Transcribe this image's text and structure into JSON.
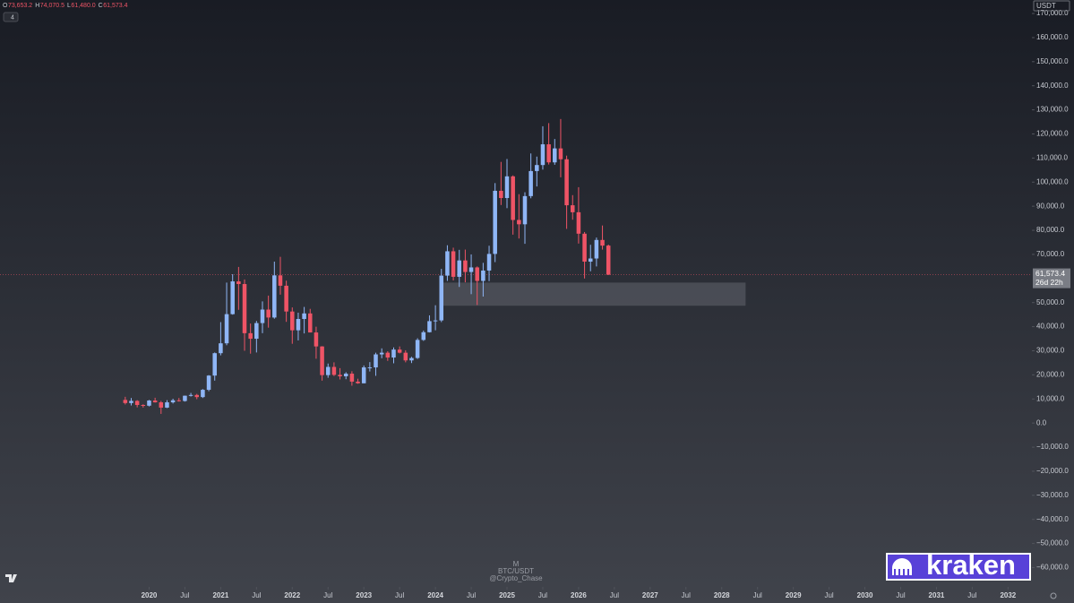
{
  "chart_data": {
    "type": "candlestick",
    "symbol_currency": "USDT",
    "legend_ohlc": [
      {
        "key": "O",
        "label": "73,653.2"
      },
      {
        "key": "H",
        "label": "74,070.5"
      },
      {
        "key": "L",
        "label": "61,480.0"
      },
      {
        "key": "C",
        "label": "61,573.4"
      }
    ],
    "indicator_count": "4",
    "watermark": [
      "M",
      "BTC/USDT",
      "@Crypto_Chase"
    ],
    "logo": "kraken",
    "up_color": "#8fb6f6",
    "down_color": "#ef5466",
    "x": [
      "2019-09",
      "2019-10",
      "2019-11",
      "2019-12",
      "2020-01",
      "2020-02",
      "2020-03",
      "2020-04",
      "2020-05",
      "2020-06",
      "2020-07",
      "2020-08",
      "2020-09",
      "2020-10",
      "2020-11",
      "2020-12",
      "2021-01",
      "2021-02",
      "2021-03",
      "2021-04",
      "2021-05",
      "2021-06",
      "2021-07",
      "2021-08",
      "2021-09",
      "2021-10",
      "2021-11",
      "2021-12",
      "2022-01",
      "2022-02",
      "2022-03",
      "2022-04",
      "2022-05",
      "2022-06",
      "2022-07",
      "2022-08",
      "2022-09",
      "2022-10",
      "2022-11",
      "2022-12",
      "2023-01",
      "2023-02",
      "2023-03",
      "2023-04",
      "2023-05",
      "2023-06",
      "2023-07",
      "2023-08",
      "2023-09",
      "2023-10",
      "2023-11",
      "2023-12",
      "2024-01",
      "2024-02",
      "2024-03",
      "2024-04",
      "2024-05",
      "2024-06",
      "2024-07",
      "2024-08",
      "2024-09",
      "2024-10",
      "2024-11",
      "2024-12",
      "2025-01",
      "2025-02",
      "2025-03",
      "2025-04",
      "2025-05",
      "2025-06",
      "2025-07",
      "2025-08",
      "2025-09",
      "2025-10",
      "2025-11",
      "2025-12",
      "2026-01",
      "2026-02",
      "2026-03",
      "2026-04",
      "2026-05",
      "2026-06"
    ],
    "open": [
      9600,
      8300,
      9200,
      7500,
      7200,
      9350,
      8600,
      6400,
      8600,
      9450,
      9140,
      11350,
      11660,
      10780,
      13800,
      19700,
      29000,
      33100,
      45200,
      58800,
      57700,
      37300,
      35000,
      41500,
      47100,
      43800,
      61300,
      57000,
      46300,
      38500,
      43200,
      45500,
      37600,
      31800,
      19900,
      23300,
      20000,
      19400,
      20500,
      17200,
      16500,
      23100,
      23100,
      28500,
      29200,
      27200,
      30500,
      29200,
      26000,
      27000,
      34500,
      37700,
      42300,
      42600,
      61200,
      71300,
      60700,
      67500,
      62700,
      64600,
      59000,
      63300,
      70200,
      96400,
      93400,
      102400,
      84300,
      82500,
      94200,
      104600,
      107100,
      115700,
      108200,
      114000,
      109500,
      90400,
      87500,
      78600,
      67000,
      68300,
      76000,
      73653.2
    ],
    "high": [
      10900,
      10400,
      9500,
      7800,
      9600,
      10500,
      9200,
      9500,
      10100,
      10400,
      11400,
      12500,
      12100,
      14100,
      19900,
      29300,
      41900,
      58300,
      61800,
      64800,
      59600,
      41300,
      42400,
      50500,
      52900,
      67000,
      69000,
      59100,
      48000,
      45800,
      48200,
      47400,
      40000,
      31900,
      24700,
      25200,
      22800,
      21100,
      21500,
      18400,
      23900,
      25300,
      29200,
      31000,
      29800,
      31400,
      31800,
      30200,
      27500,
      35200,
      38400,
      44700,
      48900,
      64000,
      73800,
      72800,
      71900,
      72000,
      70000,
      65000,
      66500,
      73600,
      99600,
      108400,
      109600,
      102800,
      95000,
      95800,
      111900,
      110600,
      123200,
      124500,
      117900,
      126200,
      111000,
      94600,
      97900,
      79300,
      74000,
      77000,
      82000,
      74070.5
    ],
    "low": [
      7700,
      7300,
      6500,
      6400,
      6900,
      8500,
      3800,
      6200,
      8100,
      8900,
      8900,
      11000,
      9900,
      10400,
      13200,
      17600,
      28100,
      32300,
      45000,
      47000,
      30000,
      28800,
      29300,
      37300,
      39600,
      43300,
      53300,
      42000,
      32900,
      34300,
      37200,
      37600,
      26700,
      17600,
      18800,
      19500,
      18100,
      18200,
      15500,
      16300,
      16500,
      21400,
      19600,
      26900,
      25800,
      24800,
      28900,
      25200,
      24900,
      26600,
      34100,
      37600,
      38500,
      41900,
      59000,
      59200,
      56500,
      58400,
      53500,
      49000,
      52500,
      58900,
      66800,
      90500,
      89200,
      78200,
      76600,
      74400,
      93300,
      98200,
      105200,
      107300,
      107200,
      102000,
      80600,
      84400,
      74500,
      60000,
      63000,
      65000,
      72000,
      61480
    ],
    "close": [
      8300,
      9200,
      7500,
      7200,
      9350,
      8600,
      6400,
      8600,
      9450,
      9140,
      11350,
      11660,
      10780,
      13800,
      19700,
      29000,
      33100,
      45200,
      58800,
      57700,
      37300,
      35000,
      41500,
      47100,
      43800,
      61300,
      57000,
      46300,
      38500,
      43200,
      45500,
      37600,
      31800,
      19900,
      23300,
      20000,
      19400,
      20500,
      17200,
      16500,
      23100,
      23100,
      28500,
      29200,
      27200,
      30500,
      29200,
      26000,
      27000,
      34500,
      37700,
      42300,
      42600,
      61200,
      71300,
      60700,
      67500,
      62700,
      64600,
      59000,
      63300,
      70200,
      96400,
      93400,
      102400,
      84300,
      82500,
      94200,
      104600,
      107100,
      115700,
      108200,
      114000,
      109500,
      90400,
      87500,
      78600,
      67000,
      68300,
      76000,
      73653.2,
      61573.4
    ],
    "zone": {
      "from": "2024-02",
      "to": "2028-05",
      "top": 58300,
      "bottom": 48700,
      "color": "#5d6069"
    },
    "last_price": {
      "value": 61573.4,
      "label": "61,573.4"
    },
    "countdown": "26d 22h",
    "xlim": [
      "2017-12",
      "2032-05"
    ],
    "xticks": [
      {
        "value": "2020-01",
        "label": "2020"
      },
      {
        "value": "2020-07",
        "label": "Jul"
      },
      {
        "value": "2021-01",
        "label": "2021"
      },
      {
        "value": "2021-07",
        "label": "Jul"
      },
      {
        "value": "2022-01",
        "label": "2022"
      },
      {
        "value": "2022-07",
        "label": "Jul"
      },
      {
        "value": "2023-01",
        "label": "2023"
      },
      {
        "value": "2023-07",
        "label": "Jul"
      },
      {
        "value": "2024-01",
        "label": "2024"
      },
      {
        "value": "2024-07",
        "label": "Jul"
      },
      {
        "value": "2025-01",
        "label": "2025"
      },
      {
        "value": "2025-07",
        "label": "Jul"
      },
      {
        "value": "2026-01",
        "label": "2026"
      },
      {
        "value": "2026-07",
        "label": "Jul"
      },
      {
        "value": "2027-01",
        "label": "2027"
      },
      {
        "value": "2027-07",
        "label": "Jul"
      },
      {
        "value": "2028-01",
        "label": "2028"
      },
      {
        "value": "2028-07",
        "label": "Jul"
      },
      {
        "value": "2029-01",
        "label": "2029"
      },
      {
        "value": "2029-07",
        "label": "Jul"
      },
      {
        "value": "2030-01",
        "label": "2030"
      },
      {
        "value": "2030-07",
        "label": "Jul"
      },
      {
        "value": "2031-01",
        "label": "2031"
      },
      {
        "value": "2031-07",
        "label": "Jul"
      },
      {
        "value": "2032-01",
        "label": "2032"
      }
    ],
    "ylim": [
      -68000,
      175600
    ],
    "yticks": [
      {
        "value": -60000,
        "label": "−60,000.0"
      },
      {
        "value": -50000,
        "label": "−50,000.0"
      },
      {
        "value": -40000,
        "label": "−40,000.0"
      },
      {
        "value": -30000,
        "label": "−30,000.0"
      },
      {
        "value": -20000,
        "label": "−20,000.0"
      },
      {
        "value": -10000,
        "label": "−10,000.0"
      },
      {
        "value": 0,
        "label": "0.0"
      },
      {
        "value": 10000,
        "label": "10,000.0"
      },
      {
        "value": 20000,
        "label": "20,000.0"
      },
      {
        "value": 30000,
        "label": "30,000.0"
      },
      {
        "value": 40000,
        "label": "40,000.0"
      },
      {
        "value": 50000,
        "label": "50,000.0"
      },
      {
        "value": 70000,
        "label": "70,000.0"
      },
      {
        "value": 80000,
        "label": "80,000.0"
      },
      {
        "value": 90000,
        "label": "90,000.0"
      },
      {
        "value": 100000,
        "label": "100,000.0"
      },
      {
        "value": 110000,
        "label": "110,000.0"
      },
      {
        "value": 120000,
        "label": "120,000.0"
      },
      {
        "value": 130000,
        "label": "130,000.0"
      },
      {
        "value": 140000,
        "label": "140,000.0"
      },
      {
        "value": 150000,
        "label": "150,000.0"
      },
      {
        "value": 160000,
        "label": "160,000.0"
      },
      {
        "value": 170000,
        "label": "170,000.0"
      }
    ]
  }
}
